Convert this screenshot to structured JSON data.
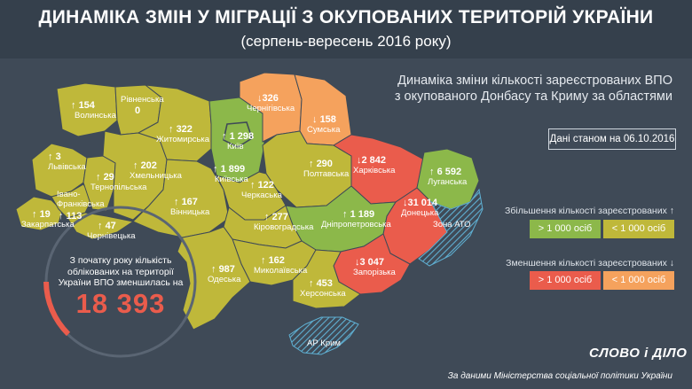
{
  "header": {
    "title": "ДИНАМІКА ЗМІН У МІГРАЦІЇ З ОКУПОВАНИХ ТЕРИТОРІЙ УКРАЇНИ",
    "subtitle": "(серпень-вересень 2016 року)"
  },
  "description": {
    "line1": "Динаміка зміни кількості зареєстрованих ВПО",
    "line2": "з окупованого Донбасу та Криму за областями"
  },
  "date_note": "Дані станом на 06.10.2016",
  "legend": {
    "increase_title": "Збільшення кількості зареєстрованих",
    "increase_arrow": "↑",
    "increase_big": "> 1 000 осіб",
    "increase_small": "< 1 000 осіб",
    "decrease_title": "Зменшення кількості зареєстрованих",
    "decrease_arrow": "↓",
    "decrease_big": "> 1 000 осіб",
    "decrease_small": "< 1 000 осіб",
    "colors": {
      "increase_big": "#8cb84a",
      "increase_small": "#bfb83a",
      "decrease_big": "#ea5c4c",
      "decrease_small": "#f5a25d"
    }
  },
  "total": {
    "text_line1": "З початку року кількість",
    "text_line2": "облікованих на території",
    "text_line3": "України ВПО зменшилась на",
    "value": "18 393"
  },
  "regions": {
    "volyn": {
      "name": "Волинська",
      "arrow": "↑",
      "value": "154",
      "category": "increase_small"
    },
    "rivne": {
      "name": "Рівненська",
      "arrow": "",
      "value": "0",
      "category": "increase_small"
    },
    "zhytomyr": {
      "name": "Житомирська",
      "arrow": "↑",
      "value": "322",
      "category": "increase_small"
    },
    "kyiv_city": {
      "name": "Київ",
      "arrow": "↑",
      "value": "1 298",
      "category": "increase_big"
    },
    "kyiv_obl": {
      "name": "Київська",
      "arrow": "↑",
      "value": "1 899",
      "category": "increase_big"
    },
    "chernihiv": {
      "name": "Чернігівська",
      "arrow": "↓",
      "value": "326",
      "category": "decrease_small"
    },
    "sumy": {
      "name": "Сумська",
      "arrow": "↓",
      "value": "158",
      "category": "decrease_small"
    },
    "kharkiv": {
      "name": "Харківська",
      "arrow": "↓",
      "value": "2 842",
      "category": "decrease_big"
    },
    "luhansk": {
      "name": "Луганська",
      "arrow": "↑",
      "value": "6 592",
      "category": "increase_big"
    },
    "donetsk": {
      "name": "Донецька",
      "arrow": "↓",
      "value": "31 014",
      "category": "decrease_big"
    },
    "lviv": {
      "name": "Львівська",
      "arrow": "↑",
      "value": "3",
      "category": "increase_small"
    },
    "ternopil": {
      "name": "Тернопільська",
      "arrow": "↑",
      "value": "29",
      "category": "increase_small"
    },
    "khmelnytskyi": {
      "name": "Хмельницька",
      "arrow": "↑",
      "value": "202",
      "category": "increase_small"
    },
    "vinnytsia": {
      "name": "Вінницька",
      "arrow": "↑",
      "value": "167",
      "category": "increase_small"
    },
    "cherkasy": {
      "name": "Черкаська",
      "arrow": "↑",
      "value": "122",
      "category": "increase_small"
    },
    "poltava": {
      "name": "Полтавська",
      "arrow": "↑",
      "value": "290",
      "category": "increase_small"
    },
    "ivano_frankivsk": {
      "name": "Івано-Франківська",
      "arrow": "↑",
      "value": "113",
      "category": "increase_small"
    },
    "zakarpattia": {
      "name": "Закарпатська",
      "arrow": "↑",
      "value": "19",
      "category": "increase_small"
    },
    "chernivtsi": {
      "name": "Чернівецька",
      "arrow": "↑",
      "value": "47",
      "category": "increase_small"
    },
    "kirovohrad": {
      "name": "Кіровоградська",
      "arrow": "↑",
      "value": "277",
      "category": "increase_small"
    },
    "dnipro": {
      "name": "Дніпропетровська",
      "arrow": "↑",
      "value": "1 189",
      "category": "increase_big"
    },
    "mykolaiv": {
      "name": "Миколаївська",
      "arrow": "↑",
      "value": "162",
      "category": "increase_small"
    },
    "odesa": {
      "name": "Одеська",
      "arrow": "↑",
      "value": "987",
      "category": "increase_small"
    },
    "zaporizhzhia": {
      "name": "Запорізька",
      "arrow": "↓",
      "value": "3 047",
      "category": "decrease_big"
    },
    "kherson": {
      "name": "Херсонська",
      "arrow": "↑",
      "value": "453",
      "category": "increase_small"
    }
  },
  "ato_zone": {
    "label": "Зона АТО"
  },
  "crimea": {
    "label": "АР Крим"
  },
  "logo": "СЛОВО і ДІЛО",
  "source": "За даними Міністерства соціальної політики України"
}
